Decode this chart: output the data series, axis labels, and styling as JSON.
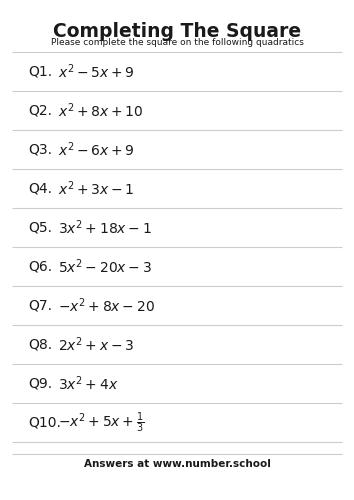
{
  "title": "Completing The Square",
  "subtitle": "Please complete the square on the following quadratics",
  "questions": [
    {
      "num": "Q1.",
      "expr": "$x^2 - 5x + 9$"
    },
    {
      "num": "Q2.",
      "expr": "$x^2 + 8x + 10$"
    },
    {
      "num": "Q3.",
      "expr": "$x^2 - 6x + 9$"
    },
    {
      "num": "Q4.",
      "expr": "$x^2 + 3x - 1$"
    },
    {
      "num": "Q5.",
      "expr": "$3x^2 + 18x - 1$"
    },
    {
      "num": "Q6.",
      "expr": "$5x^2 - 20x - 3$"
    },
    {
      "num": "Q7.",
      "expr": "$-x^2 + 8x - 20$"
    },
    {
      "num": "Q8.",
      "expr": "$2x^2 + x - 3$"
    },
    {
      "num": "Q9.",
      "expr": "$3x^2 + 4x$"
    },
    {
      "num": "Q10.",
      "expr": "$-x^2 + 5x + \\frac{1}{3}$"
    }
  ],
  "footer": "Answers at www.number.school",
  "bg_color": "#ffffff",
  "text_color": "#1a1a1a",
  "line_color": "#cccccc",
  "title_fontsize": 13.5,
  "subtitle_fontsize": 6.5,
  "question_num_fontsize": 10,
  "question_expr_fontsize": 10,
  "footer_fontsize": 7.5
}
